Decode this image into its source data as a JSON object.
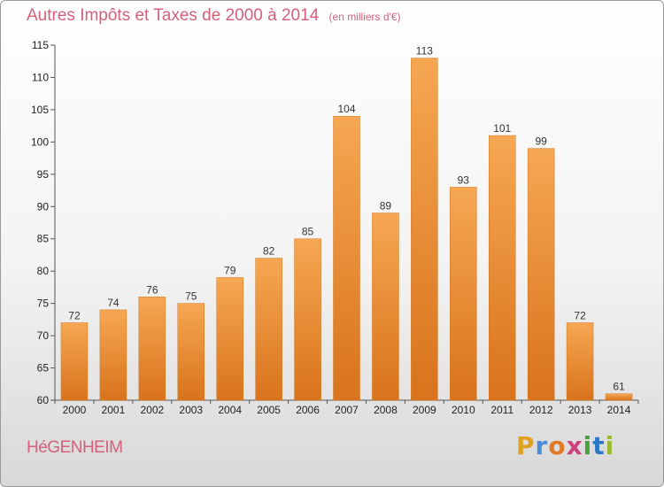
{
  "header": {
    "title": "Autres Impôts et Taxes de 2000 à 2014",
    "unit": "(en milliers d'€)"
  },
  "footer": {
    "commune": "HéGENHEIM",
    "brand": "Proxiti"
  },
  "colors": {
    "bar_light": "#f6a752",
    "bar_dark": "#d9731c",
    "title": "#d4607a"
  },
  "chart_data": {
    "type": "bar",
    "title": "Autres Impôts et Taxes de 2000 à 2014",
    "subtitle": "(en milliers d'€)",
    "xlabel": "",
    "ylabel": "",
    "categories": [
      "2000",
      "2001",
      "2002",
      "2003",
      "2004",
      "2005",
      "2006",
      "2007",
      "2008",
      "2009",
      "2010",
      "2011",
      "2012",
      "2013",
      "2014"
    ],
    "values": [
      72,
      74,
      76,
      75,
      79,
      82,
      85,
      104,
      89,
      113,
      93,
      101,
      99,
      72,
      61
    ],
    "ylim": [
      60,
      115
    ],
    "yticks": [
      60,
      65,
      70,
      75,
      80,
      85,
      90,
      95,
      100,
      105,
      110,
      115
    ],
    "grid": false,
    "legend": "none"
  }
}
